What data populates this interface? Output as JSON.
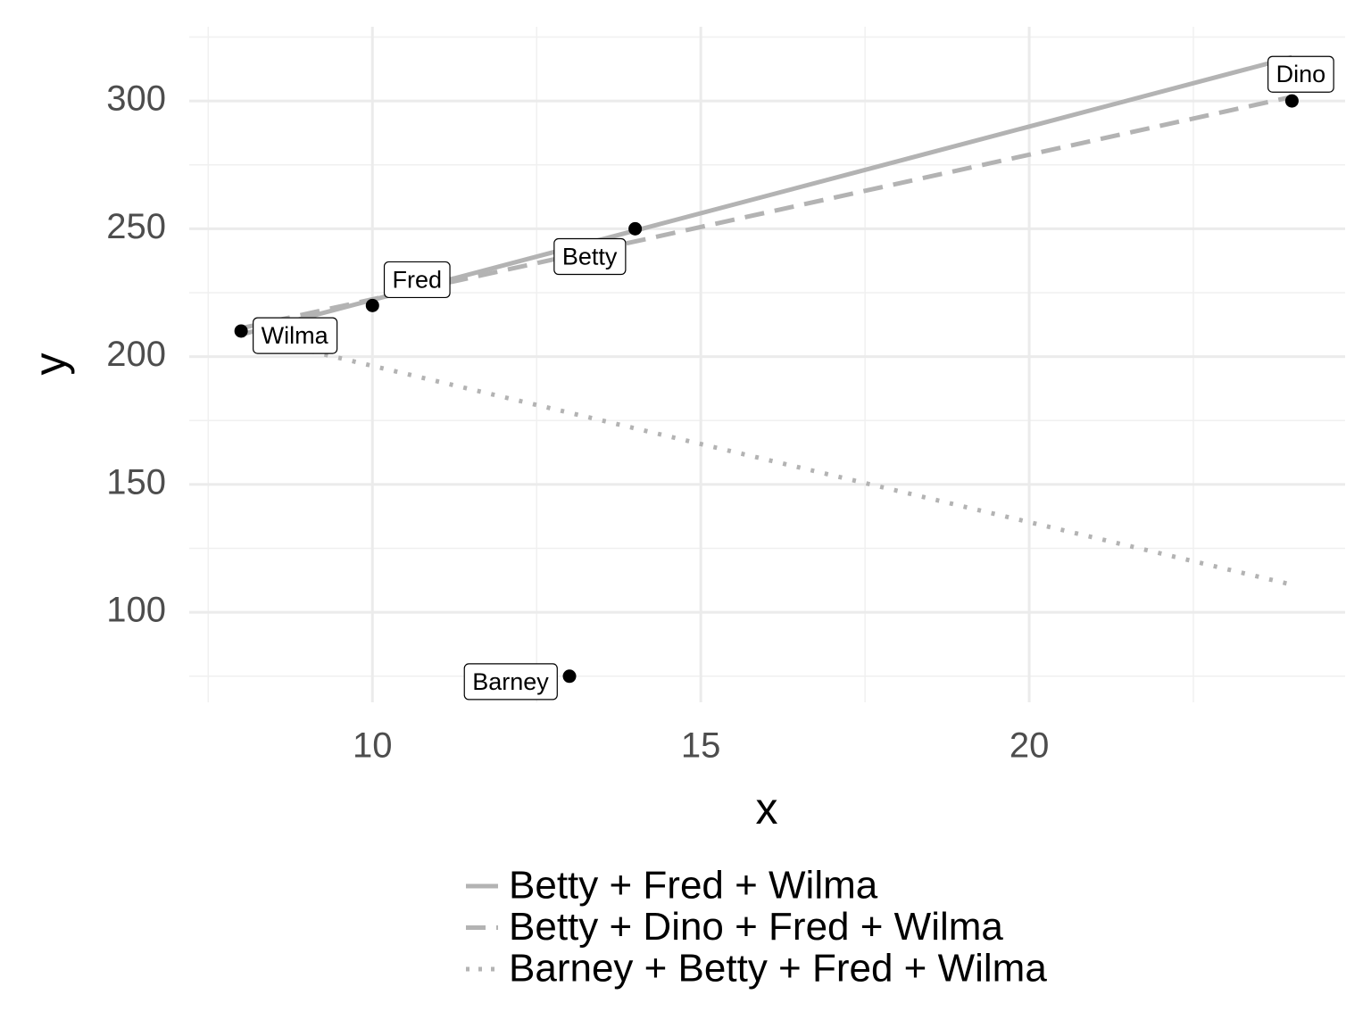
{
  "chart_data": {
    "type": "scatter",
    "x_label": "x",
    "y_label": "y",
    "point_color": "#000000",
    "labels": [
      "Wilma",
      "Fred",
      "Betty",
      "Barney",
      "Dino"
    ],
    "x": [
      8,
      10,
      14,
      13,
      24
    ],
    "values": [
      210,
      220,
      250,
      75,
      300
    ],
    "lines": [
      {
        "name": "Betty + Fred + Wilma",
        "color": "#b3b3b3",
        "dash": "solid",
        "x": [
          8,
          24
        ],
        "values": [
          208.6,
          317.1
        ]
      },
      {
        "name": "Betty + Dino + Fred + Wilma",
        "color": "#b3b3b3",
        "dash": "dashed",
        "x": [
          8,
          24
        ],
        "values": [
          211.1,
          301.6
        ]
      },
      {
        "name": "Barney + Betty + Fred + Wilma",
        "color": "#b3b3b3",
        "dash": "dotted",
        "x": [
          8,
          24
        ],
        "values": [
          208.6,
          110.8
        ]
      }
    ],
    "xlim": [
      7.21,
      24.81
    ],
    "ylim": [
      64.8,
      329
    ],
    "xticks": [
      10,
      15,
      20
    ],
    "yticks": [
      100,
      150,
      200,
      250,
      300
    ],
    "xminor": [
      7.5,
      12.5,
      17.5,
      22.5
    ],
    "yminor": [
      75,
      125,
      175,
      225,
      275,
      325
    ],
    "grid": true,
    "legend": "bottom"
  }
}
